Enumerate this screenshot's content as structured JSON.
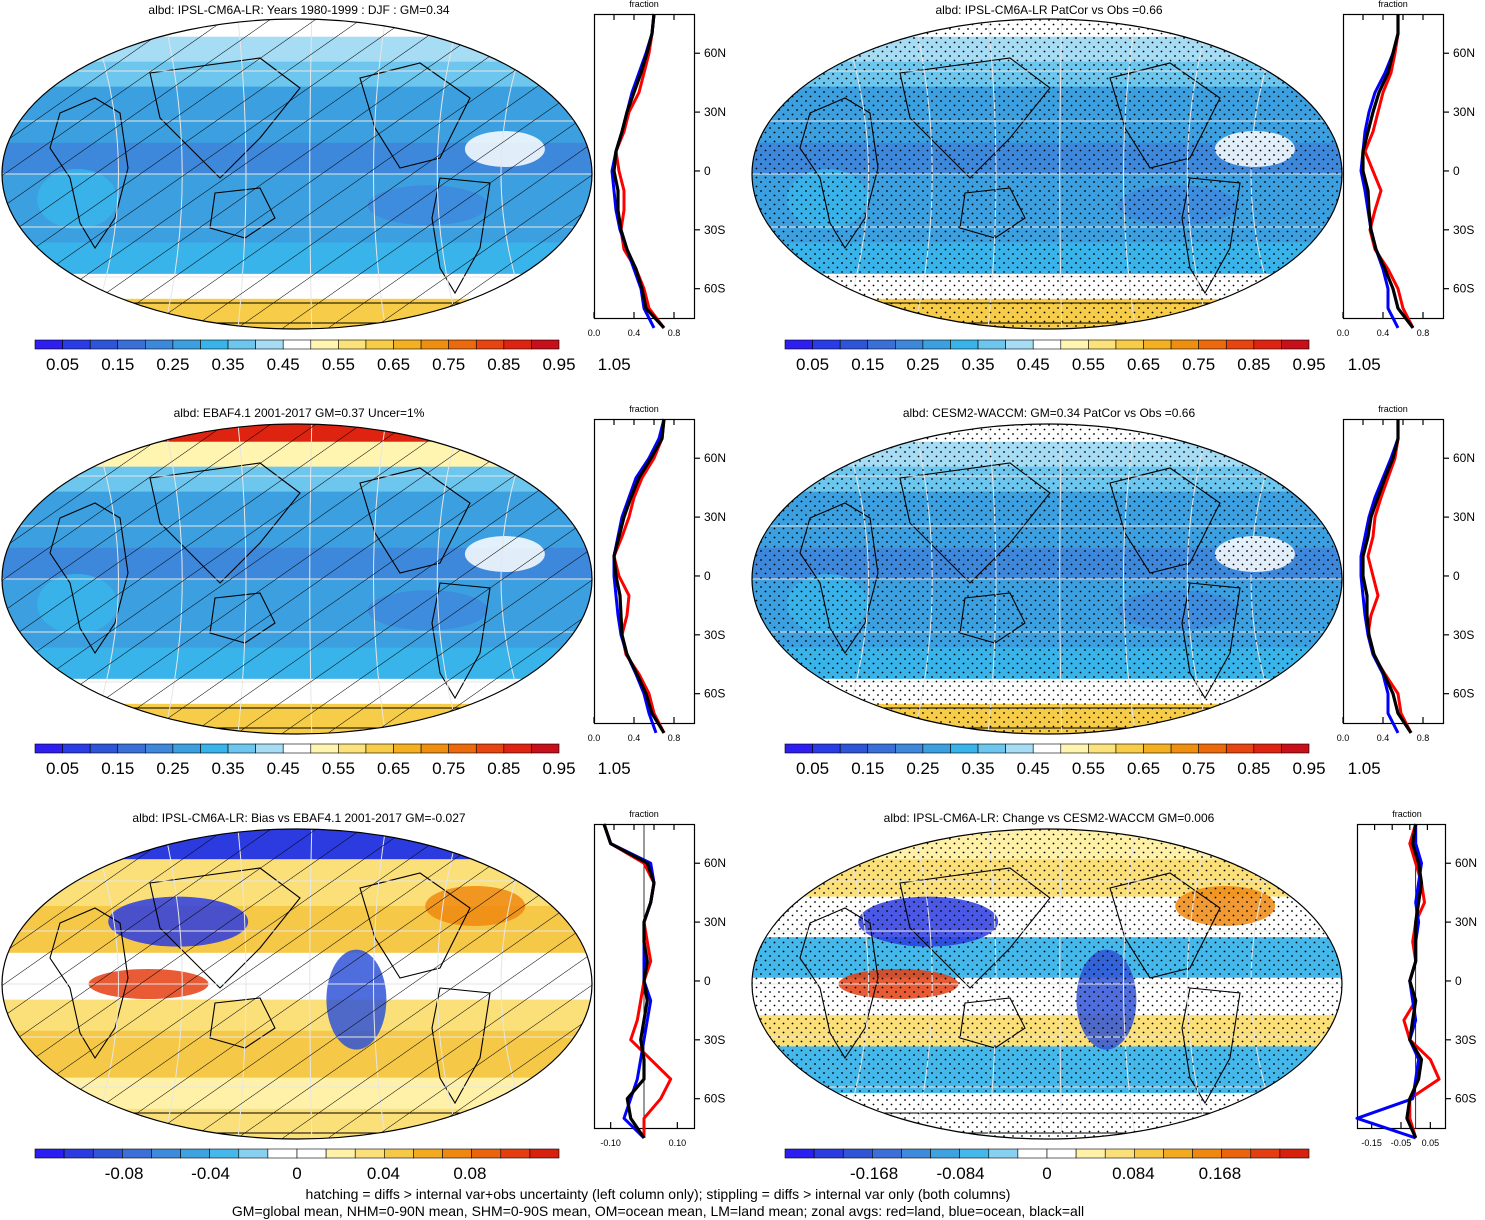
{
  "footer": {
    "line1": "hatching = diffs > internal var+obs uncertainty (left column only); stippling = diffs > internal var only (both columns)",
    "line2": "GM=global mean, NHM=0-90N mean, SHM=0-90S mean, OM=ocean mean, LM=land mean; zonal avgs: red=land, blue=ocean, black=all"
  },
  "colorbars": {
    "abs": [
      "0.05",
      "0.15",
      "0.25",
      "0.35",
      "0.45",
      "0.55",
      "0.65",
      "0.75",
      "0.85",
      "0.95",
      "1.05"
    ],
    "bias": [
      "-0.08",
      "-0.04",
      "0",
      "0.04",
      "0.08"
    ],
    "change": [
      "-0.168",
      "-0.084",
      "0",
      "0.084",
      "0.168"
    ]
  },
  "colors": {
    "abs_levels": [
      "#2f1ef0",
      "#2a3ce6",
      "#2e55d8",
      "#3a6fd8",
      "#3e88dc",
      "#3ca0e0",
      "#38b4ea",
      "#6cc6ee",
      "#a6dcf4",
      "#ffffff",
      "#fff4b0",
      "#fbe27a",
      "#f7cc48",
      "#f4b020",
      "#f08e10",
      "#ec6a0c",
      "#e64410",
      "#de2410",
      "#c8101a"
    ],
    "diff_levels": [
      "#2a1ef0",
      "#2c3be0",
      "#3054d6",
      "#3c70d8",
      "#3e8adc",
      "#3ca2e0",
      "#44b8ea",
      "#88d0f0",
      "#ffffff",
      "#ffffff",
      "#fff2a8",
      "#fbe07a",
      "#f6c848",
      "#f3aa20",
      "#ef8810",
      "#ea640e",
      "#e43e10",
      "#d8200e"
    ],
    "land": "#ff0000",
    "ocean": "#0000ff",
    "all": "#000000"
  },
  "chart_data": [
    {
      "panel": "top-left",
      "type": "heatmap",
      "title": "albd: IPSL-CM6A-LR: Years 1980-1999 : DJF : GM=0.34",
      "colorbar": "abs",
      "overlay": "hatching",
      "zonal": {
        "title": "fraction",
        "xlim": [
          0,
          1.0
        ],
        "xticks": [
          "0.0",
          "0.4",
          "0.8"
        ],
        "lat_labels": [
          "60N",
          "30N",
          "0",
          "30S",
          "60S"
        ],
        "lat": [
          80,
          70,
          60,
          50,
          40,
          30,
          20,
          10,
          0,
          -10,
          -20,
          -30,
          -40,
          -50,
          -60,
          -70,
          -80
        ],
        "land": [
          0.6,
          0.58,
          0.55,
          0.5,
          0.45,
          0.35,
          0.3,
          0.22,
          0.25,
          0.3,
          0.3,
          0.27,
          0.3,
          0.42,
          0.5,
          0.55,
          0.7
        ],
        "ocean": [
          0.6,
          0.58,
          0.52,
          0.45,
          0.38,
          0.33,
          0.28,
          0.22,
          0.18,
          0.2,
          0.22,
          0.26,
          0.33,
          0.4,
          0.47,
          0.5,
          0.6
        ],
        "all": [
          0.6,
          0.58,
          0.53,
          0.47,
          0.4,
          0.33,
          0.28,
          0.22,
          0.2,
          0.24,
          0.24,
          0.27,
          0.33,
          0.42,
          0.48,
          0.52,
          0.7
        ]
      }
    },
    {
      "panel": "top-right",
      "type": "heatmap",
      "title": "albd: IPSL-CM6A-LR PatCor vs Obs =0.66",
      "colorbar": "abs",
      "overlay": "stippling",
      "zonal": {
        "title": "fraction",
        "xlim": [
          0,
          1.0
        ],
        "xticks": [
          "0.0",
          "0.4",
          "0.8"
        ],
        "lat_labels": [
          "60N",
          "30N",
          "0",
          "30S",
          "60S"
        ],
        "lat": [
          80,
          70,
          60,
          50,
          40,
          30,
          20,
          10,
          0,
          -10,
          -20,
          -30,
          -40,
          -50,
          -60,
          -70,
          -80
        ],
        "land": [
          0.55,
          0.55,
          0.52,
          0.48,
          0.4,
          0.35,
          0.3,
          0.22,
          0.3,
          0.38,
          0.32,
          0.27,
          0.32,
          0.45,
          0.55,
          0.6,
          0.7
        ],
        "ocean": [
          0.55,
          0.55,
          0.5,
          0.42,
          0.32,
          0.26,
          0.22,
          0.2,
          0.18,
          0.22,
          0.25,
          0.28,
          0.33,
          0.4,
          0.45,
          0.45,
          0.55
        ],
        "all": [
          0.55,
          0.55,
          0.5,
          0.45,
          0.36,
          0.3,
          0.25,
          0.2,
          0.2,
          0.25,
          0.26,
          0.28,
          0.33,
          0.42,
          0.5,
          0.55,
          0.7
        ]
      }
    },
    {
      "panel": "middle-left",
      "type": "heatmap",
      "title": "albd: EBAF4.1 2001-2017 GM=0.37 Uncer=1%",
      "colorbar": "abs",
      "overlay": "hatching",
      "zonal": {
        "title": "fraction",
        "xlim": [
          0,
          1.0
        ],
        "xticks": [
          "0.0",
          "0.4",
          "0.8"
        ],
        "lat_labels": [
          "60N",
          "30N",
          "0",
          "30S",
          "60S"
        ],
        "lat": [
          80,
          70,
          60,
          50,
          40,
          30,
          20,
          10,
          0,
          -10,
          -20,
          -30,
          -40,
          -50,
          -60,
          -70,
          -80
        ],
        "land": [
          0.7,
          0.68,
          0.6,
          0.48,
          0.4,
          0.35,
          0.28,
          0.2,
          0.25,
          0.35,
          0.33,
          0.28,
          0.32,
          0.45,
          0.55,
          0.6,
          0.7
        ],
        "ocean": [
          0.7,
          0.65,
          0.55,
          0.42,
          0.35,
          0.28,
          0.24,
          0.2,
          0.2,
          0.22,
          0.24,
          0.27,
          0.33,
          0.42,
          0.5,
          0.55,
          0.62
        ],
        "all": [
          0.7,
          0.68,
          0.57,
          0.45,
          0.37,
          0.3,
          0.25,
          0.2,
          0.22,
          0.26,
          0.27,
          0.28,
          0.33,
          0.43,
          0.52,
          0.58,
          0.7
        ]
      }
    },
    {
      "panel": "middle-right",
      "type": "heatmap",
      "title": "albd: CESM2-WACCM: GM=0.34 PatCor vs Obs =0.66",
      "colorbar": "abs",
      "overlay": "stippling",
      "zonal": {
        "title": "fraction",
        "xlim": [
          0,
          1.0
        ],
        "xticks": [
          "0.0",
          "0.4",
          "0.8"
        ],
        "lat_labels": [
          "60N",
          "30N",
          "0",
          "30S",
          "60S"
        ],
        "lat": [
          80,
          70,
          60,
          50,
          40,
          30,
          20,
          10,
          0,
          -10,
          -20,
          -30,
          -40,
          -50,
          -60,
          -70,
          -80
        ],
        "land": [
          0.55,
          0.55,
          0.52,
          0.45,
          0.38,
          0.32,
          0.3,
          0.25,
          0.3,
          0.35,
          0.28,
          0.25,
          0.3,
          0.42,
          0.55,
          0.58,
          0.68
        ],
        "ocean": [
          0.55,
          0.55,
          0.48,
          0.4,
          0.32,
          0.26,
          0.22,
          0.18,
          0.18,
          0.2,
          0.22,
          0.25,
          0.3,
          0.4,
          0.45,
          0.45,
          0.55
        ],
        "all": [
          0.55,
          0.55,
          0.5,
          0.42,
          0.35,
          0.28,
          0.25,
          0.2,
          0.2,
          0.24,
          0.24,
          0.26,
          0.31,
          0.41,
          0.5,
          0.55,
          0.68
        ]
      }
    },
    {
      "panel": "bottom-left",
      "type": "heatmap",
      "title": "albd: IPSL-CM6A-LR: Bias vs EBAF4.1 2001-2017 GM=-0.027",
      "colorbar": "bias",
      "overlay": "hatching",
      "zonal": {
        "title": "fraction",
        "xlim": [
          -0.15,
          0.15
        ],
        "xticks": [
          "-0.10",
          "0.10"
        ],
        "lat_labels": [
          "60N",
          "30N",
          "0",
          "30S",
          "60S"
        ],
        "lat": [
          80,
          70,
          60,
          50,
          40,
          30,
          20,
          10,
          0,
          -10,
          -20,
          -30,
          -40,
          -50,
          -60,
          -70,
          -80
        ],
        "land": [
          -0.12,
          -0.1,
          0.0,
          0.03,
          0.02,
          0.0,
          0.01,
          0.02,
          0.0,
          -0.01,
          -0.02,
          -0.04,
          0.02,
          0.08,
          0.05,
          0.0,
          0.0
        ],
        "ocean": [
          -0.12,
          -0.1,
          0.02,
          0.03,
          0.02,
          0.0,
          0.0,
          0.0,
          0.0,
          0.02,
          0.01,
          0.0,
          -0.01,
          -0.02,
          -0.04,
          -0.06,
          0.0
        ],
        "all": [
          -0.12,
          -0.1,
          0.01,
          0.03,
          0.02,
          0.0,
          0.0,
          0.01,
          0.0,
          0.01,
          0.0,
          -0.01,
          0.0,
          0.0,
          -0.05,
          -0.04,
          0.0
        ]
      }
    },
    {
      "panel": "bottom-right",
      "type": "heatmap",
      "title": "albd: IPSL-CM6A-LR: Change vs CESM2-WACCM GM=0.006",
      "colorbar": "change",
      "overlay": "stippling",
      "zonal": {
        "title": "fraction",
        "xlim": [
          -0.2,
          0.1
        ],
        "xticks": [
          "-0.15",
          "-0.05",
          "0.05"
        ],
        "lat_labels": [
          "60N",
          "30N",
          "0",
          "30S",
          "60S"
        ],
        "lat": [
          80,
          70,
          60,
          50,
          40,
          30,
          20,
          10,
          0,
          -10,
          -20,
          -30,
          -40,
          -50,
          -60,
          -70,
          -80
        ],
        "land": [
          0.0,
          -0.02,
          0.0,
          0.02,
          0.03,
          0.0,
          -0.01,
          0.0,
          -0.02,
          0.0,
          -0.04,
          -0.02,
          0.05,
          0.08,
          -0.02,
          -0.02,
          0.0
        ],
        "ocean": [
          0.0,
          0.0,
          0.02,
          0.01,
          0.0,
          0.01,
          0.0,
          0.0,
          -0.02,
          -0.01,
          0.0,
          -0.02,
          0.01,
          0.0,
          -0.01,
          -0.2,
          0.0
        ],
        "all": [
          0.0,
          -0.01,
          0.01,
          0.02,
          0.01,
          0.0,
          0.0,
          0.0,
          -0.02,
          0.0,
          -0.01,
          -0.02,
          0.02,
          0.01,
          -0.02,
          -0.03,
          0.0
        ]
      }
    }
  ]
}
